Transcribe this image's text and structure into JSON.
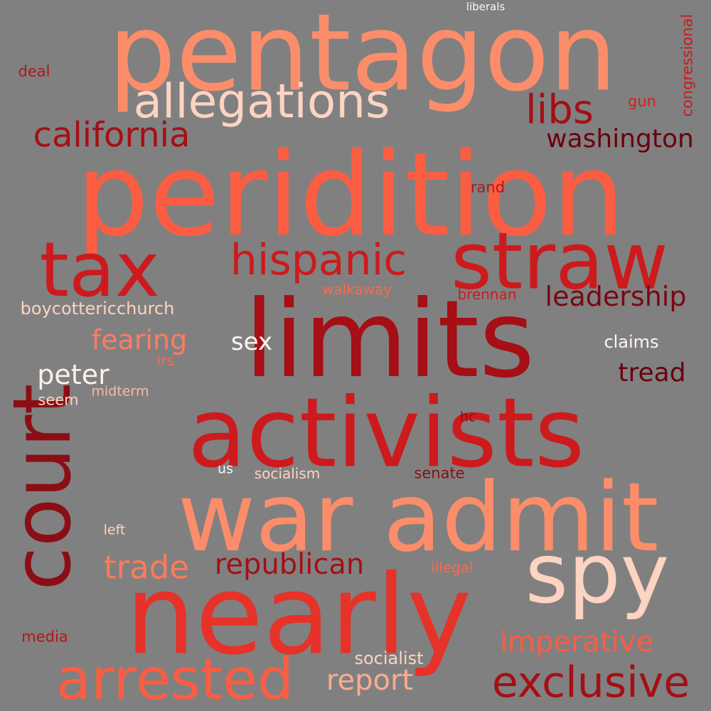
{
  "palette": {
    "background": "#808080",
    "salmon": "#fc8d6a",
    "light_salmon": "#fcb79c",
    "pale_peach": "#fdd3c1",
    "near_white": "#fff0e9",
    "tomato": "#fb5d43",
    "red": "#e63228",
    "crimson": "#cd1a1d",
    "dark_red": "#a50f15",
    "darkest_red": "#6a010d"
  },
  "words": [
    {
      "key": "pentagon",
      "text": "pentagon",
      "color": "#fc8d6a"
    },
    {
      "key": "peridition",
      "text": "peridition",
      "color": "#fb5d43"
    },
    {
      "key": "limits",
      "text": "limits",
      "color": "#a50f15"
    },
    {
      "key": "activists",
      "text": "activists",
      "color": "#cd1a1d"
    },
    {
      "key": "war-admit",
      "text": "war admit",
      "color": "#fc8d6a"
    },
    {
      "key": "nearly",
      "text": "nearly",
      "color": "#e63228"
    },
    {
      "key": "court",
      "text": "court",
      "color": "#8b0e14"
    },
    {
      "key": "straw",
      "text": "straw",
      "color": "#cd1a1d"
    },
    {
      "key": "tax",
      "text": "tax",
      "color": "#cd1a1d"
    },
    {
      "key": "spy",
      "text": "spy",
      "color": "#fdd3c1"
    },
    {
      "key": "allegations",
      "text": "allegations",
      "color": "#fdd3c1"
    },
    {
      "key": "arrested",
      "text": "arrested",
      "color": "#fb5d43"
    },
    {
      "key": "exclusive",
      "text": "exclusive",
      "color": "#a50f15"
    },
    {
      "key": "california",
      "text": "california",
      "color": "#a50f15"
    },
    {
      "key": "hispanic",
      "text": "hispanic",
      "color": "#cd1a1d"
    },
    {
      "key": "libs",
      "text": "libs",
      "color": "#a50f15"
    },
    {
      "key": "washington",
      "text": "washington",
      "color": "#6a010d"
    },
    {
      "key": "leadership",
      "text": "leadership",
      "color": "#7b0711"
    },
    {
      "key": "republican",
      "text": "republican",
      "color": "#a50f15"
    },
    {
      "key": "imperative",
      "text": "imperative",
      "color": "#fb5d43"
    },
    {
      "key": "trade",
      "text": "trade",
      "color": "#fc7a5c"
    },
    {
      "key": "report",
      "text": "report",
      "color": "#fcab8f"
    },
    {
      "key": "fearing",
      "text": "fearing",
      "color": "#fc7d60"
    },
    {
      "key": "peter",
      "text": "peter",
      "color": "#fff0e9"
    },
    {
      "key": "tread",
      "text": "tread",
      "color": "#6a010d"
    },
    {
      "key": "sex",
      "text": "sex",
      "color": "#fff5f0"
    },
    {
      "key": "boycottericchurch",
      "text": "boycottericchurch",
      "color": "#fdd3c1"
    },
    {
      "key": "claims",
      "text": "claims",
      "color": "#fff5f0"
    },
    {
      "key": "socialist",
      "text": "socialist",
      "color": "#fdd3c1"
    },
    {
      "key": "congressional",
      "text": "congressional",
      "color": "#cd1a1d"
    },
    {
      "key": "deal",
      "text": "deal",
      "color": "#b81419"
    },
    {
      "key": "gun",
      "text": "gun",
      "color": "#d32020"
    },
    {
      "key": "rand",
      "text": "rand",
      "color": "#b81419"
    },
    {
      "key": "walkaway",
      "text": "walkaway",
      "color": "#fb6a4a"
    },
    {
      "key": "brennan",
      "text": "brennan",
      "color": "#cd1a1d"
    },
    {
      "key": "irs",
      "text": "irs",
      "color": "#fb6a4a"
    },
    {
      "key": "seem",
      "text": "seem",
      "color": "#fdd3c1"
    },
    {
      "key": "midterm",
      "text": "midterm",
      "color": "#fcbba1"
    },
    {
      "key": "hc",
      "text": "hc",
      "color": "#8b0e14"
    },
    {
      "key": "us",
      "text": "us",
      "color": "#fff5f0"
    },
    {
      "key": "socialism",
      "text": "socialism",
      "color": "#fdd3c1"
    },
    {
      "key": "senate",
      "text": "senate",
      "color": "#8b0e14"
    },
    {
      "key": "left",
      "text": "left",
      "color": "#fdd3c1"
    },
    {
      "key": "illegal",
      "text": "illegal",
      "color": "#fb6a4a"
    },
    {
      "key": "media",
      "text": "media",
      "color": "#b81419"
    },
    {
      "key": "liberals",
      "text": "liberals",
      "color": "#fff5f0"
    }
  ]
}
